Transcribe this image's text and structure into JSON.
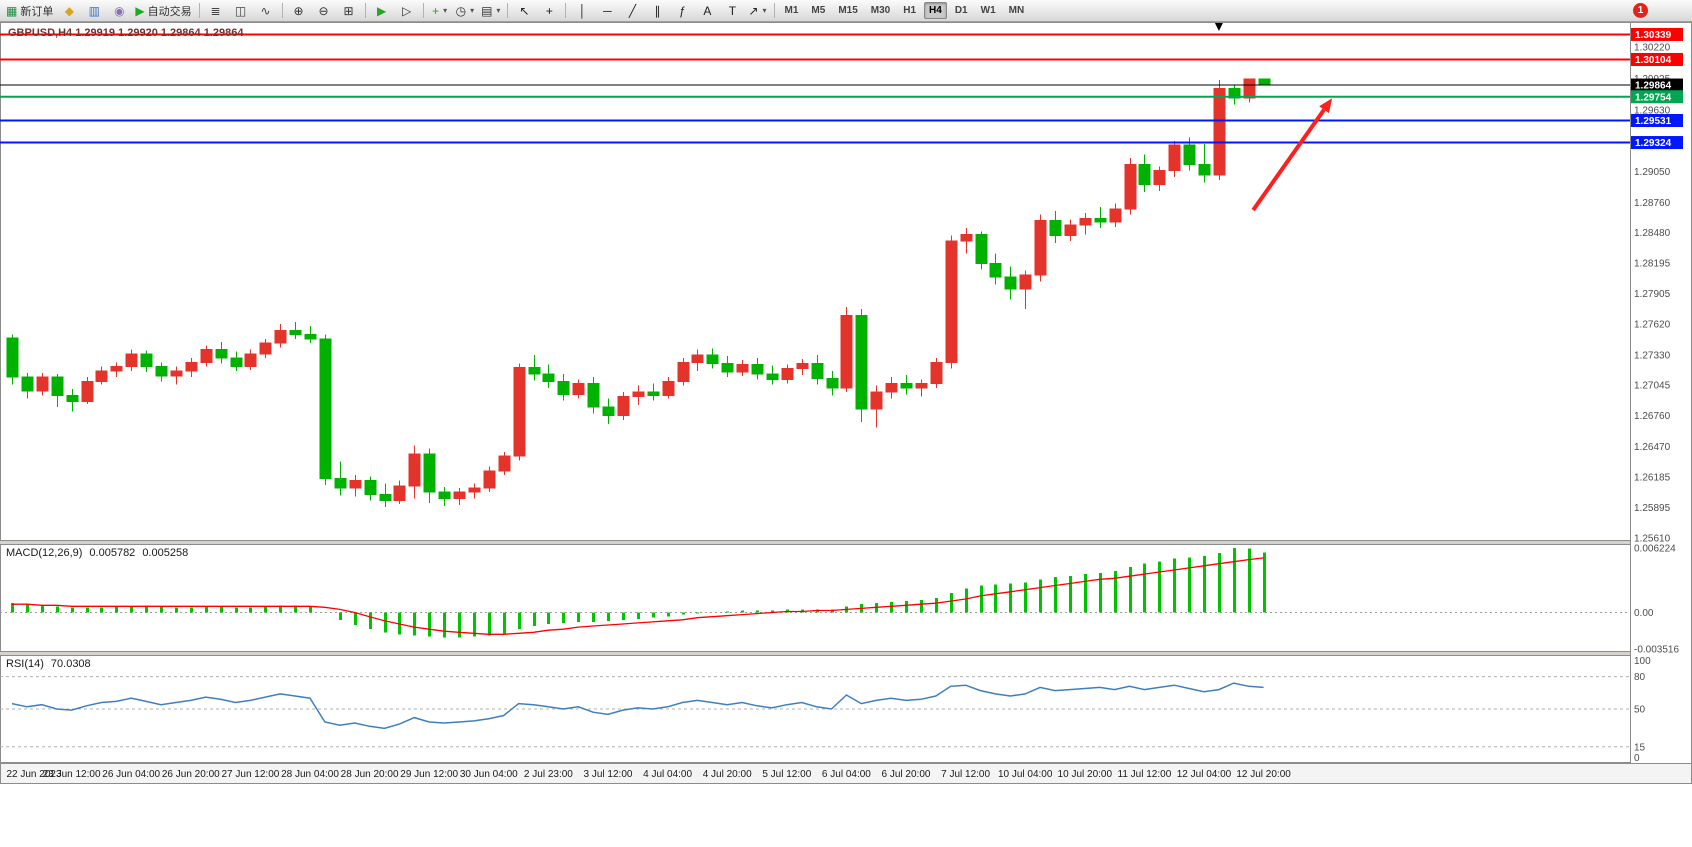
{
  "toolbar": {
    "new_order": "新订单",
    "auto_trading": "自动交易",
    "caret_glyph": "▾",
    "notification_count": "1",
    "timeframes": [
      "M1",
      "M5",
      "M15",
      "M30",
      "H1",
      "H4",
      "D1",
      "W1",
      "MN"
    ],
    "active_timeframe": "H4",
    "buttons": [
      {
        "name": "new-order-button",
        "glyph": "▦",
        "glyph_color": "#1c8c3c",
        "label_key": "new_order"
      },
      {
        "name": "history-center-button",
        "glyph": "◆",
        "glyph_color": "#d9a520"
      },
      {
        "name": "profiles-button",
        "glyph": "▥",
        "glyph_color": "#3a6fc4"
      },
      {
        "name": "alerts-button",
        "glyph": "◉",
        "glyph_color": "#8a6fb8"
      },
      {
        "name": "auto-trading-button",
        "glyph": "▶",
        "glyph_color": "#1faa1f",
        "label_key": "auto_trading"
      },
      {
        "sep": true
      },
      {
        "name": "bar-chart-button",
        "glyph": "≣",
        "glyph_color": "#444444"
      },
      {
        "name": "candlestick-chart-button",
        "glyph": "◫",
        "glyph_color": "#444444"
      },
      {
        "name": "line-chart-button",
        "glyph": "∿",
        "glyph_color": "#444444"
      },
      {
        "sep": true
      },
      {
        "name": "zoom-in-button",
        "glyph": "⊕",
        "glyph_color": "#333333"
      },
      {
        "name": "zoom-out-button",
        "glyph": "⊖",
        "glyph_color": "#333333"
      },
      {
        "name": "tile-windows-button",
        "glyph": "⊞",
        "glyph_color": "#333333"
      },
      {
        "sep": true
      },
      {
        "name": "auto-scroll-button",
        "glyph": "▶",
        "glyph_color": "#2aa52a"
      },
      {
        "name": "chart-shift-button",
        "glyph": "▷",
        "glyph_color": "#333333"
      },
      {
        "sep": true
      },
      {
        "name": "indicators-button",
        "glyph": "+",
        "glyph_color": "#1faa1f",
        "caret": true
      },
      {
        "name": "periods-button",
        "glyph": "◷",
        "glyph_color": "#333333",
        "caret": true
      },
      {
        "name": "templates-button",
        "glyph": "▤",
        "glyph_color": "#333333",
        "caret": true
      },
      {
        "sep": true
      },
      {
        "name": "cursor-button",
        "glyph": "↖",
        "glyph_color": "#222222"
      },
      {
        "name": "crosshair-button",
        "glyph": "+",
        "glyph_color": "#222222"
      },
      {
        "sep": true
      },
      {
        "name": "vertical-line-button",
        "glyph": "│",
        "glyph_color": "#222222"
      },
      {
        "name": "horizontal-line-button",
        "glyph": "─",
        "glyph_color": "#222222"
      },
      {
        "name": "trendline-button",
        "glyph": "╱",
        "glyph_color": "#222222"
      },
      {
        "name": "channel-button",
        "glyph": "∥",
        "glyph_color": "#222222"
      },
      {
        "name": "fibonacci-button",
        "glyph": "ƒ",
        "glyph_color": "#222222"
      },
      {
        "name": "text-button",
        "glyph": "A",
        "glyph_color": "#222222"
      },
      {
        "name": "text-label-button",
        "glyph": "T",
        "glyph_color": "#222222"
      },
      {
        "name": "arrows-button",
        "glyph": "↗",
        "glyph_color": "#222222",
        "caret": true
      },
      {
        "sep": true
      }
    ]
  },
  "main_chart": {
    "ohlc_readout": "GBPUSD,H4  1.29919 1.29920 1.29864 1.29864"
  },
  "macd": {
    "label": "MACD(12,26,9)",
    "value_main": "0.005782",
    "value_signal": "0.005258"
  },
  "rsi": {
    "label": "RSI(14)",
    "value": "70.0308"
  },
  "chart_data": [
    {
      "type": "candlestick",
      "symbol": "GBPUSD",
      "timeframe": "H4",
      "ohlc_readout": {
        "open": "1.29919",
        "high": "1.29920",
        "low": "1.29864",
        "close": "1.29864"
      },
      "up_color": "#e3332a",
      "down_color": "#00b200",
      "ylim": [
        1.25582,
        1.30456
      ],
      "price_axis_labels": [
        "1.30220",
        "1.29925",
        "1.29630",
        "1.29340",
        "1.29050",
        "1.28760",
        "1.28480",
        "1.28195",
        "1.27905",
        "1.27620",
        "1.27330",
        "1.27045",
        "1.26760",
        "1.26470",
        "1.26185",
        "1.25895",
        "1.25610"
      ],
      "levels": [
        {
          "price": 1.30339,
          "badge": "1.30339",
          "color": "#ff0000",
          "width": 2
        },
        {
          "price": 1.30104,
          "badge": "1.30104",
          "color": "#ff0000",
          "width": 2
        },
        {
          "price": 1.29864,
          "badge": "1.29864",
          "color": "#000000",
          "width": 1
        },
        {
          "price": 1.29754,
          "badge": "1.29754",
          "color": "#00a651",
          "width": 2
        },
        {
          "price": 1.29531,
          "badge": "1.29531",
          "color": "#0017ff",
          "width": 2
        },
        {
          "price": 1.29324,
          "badge": "1.29324",
          "color": "#0017ff",
          "width": 2
        }
      ],
      "x_label_every": 4,
      "x_labels": [
        "22 Jun 2023",
        "23 Jun 12:00",
        "26 Jun 04:00",
        "26 Jun 20:00",
        "27 Jun 12:00",
        "28 Jun 04:00",
        "28 Jun 20:00",
        "29 Jun 12:00",
        "30 Jun 04:00",
        "2 Jul 23:00",
        "3 Jul 12:00",
        "4 Jul 04:00",
        "4 Jul 20:00",
        "5 Jul 12:00",
        "6 Jul 04:00",
        "6 Jul 20:00",
        "7 Jul 12:00",
        "10 Jul 04:00",
        "10 Jul 20:00",
        "11 Jul 12:00",
        "12 Jul 04:00",
        "12 Jul 20:00"
      ],
      "arrow": {
        "from_bar": 83.3,
        "from_price": 1.2869,
        "to_bar": 88.6,
        "to_price": 1.2974,
        "color": "#ff1f1f"
      },
      "marker_bar": 81,
      "candles": [
        [
          1.2749,
          1.2752,
          1.2705,
          1.2712
        ],
        [
          1.2712,
          1.2716,
          1.2692,
          1.2699
        ],
        [
          1.2699,
          1.2716,
          1.2695,
          1.2712
        ],
        [
          1.2712,
          1.2715,
          1.2684,
          1.2695
        ],
        [
          1.2695,
          1.2701,
          1.268,
          1.2689
        ],
        [
          1.2689,
          1.2712,
          1.2687,
          1.2708
        ],
        [
          1.2708,
          1.2722,
          1.2705,
          1.2718
        ],
        [
          1.2718,
          1.2726,
          1.2712,
          1.2722
        ],
        [
          1.2722,
          1.2738,
          1.2718,
          1.2734
        ],
        [
          1.2734,
          1.2737,
          1.2717,
          1.2722
        ],
        [
          1.2722,
          1.2726,
          1.2708,
          1.2713
        ],
        [
          1.2713,
          1.2722,
          1.2705,
          1.2718
        ],
        [
          1.2718,
          1.273,
          1.2712,
          1.2726
        ],
        [
          1.2726,
          1.2742,
          1.2722,
          1.2738
        ],
        [
          1.2738,
          1.2745,
          1.2725,
          1.273
        ],
        [
          1.273,
          1.2736,
          1.2718,
          1.2722
        ],
        [
          1.2722,
          1.2738,
          1.2719,
          1.2734
        ],
        [
          1.2734,
          1.2748,
          1.273,
          1.2744
        ],
        [
          1.2744,
          1.2762,
          1.274,
          1.2756
        ],
        [
          1.2756,
          1.2764,
          1.2748,
          1.2752
        ],
        [
          1.2752,
          1.276,
          1.2744,
          1.2748
        ],
        [
          1.2748,
          1.2752,
          1.2611,
          1.2617
        ],
        [
          1.2617,
          1.2633,
          1.2601,
          1.2608
        ],
        [
          1.2608,
          1.262,
          1.26,
          1.2615
        ],
        [
          1.2615,
          1.2619,
          1.2596,
          1.2602
        ],
        [
          1.2602,
          1.2612,
          1.259,
          1.2596
        ],
        [
          1.2596,
          1.2615,
          1.2593,
          1.261
        ],
        [
          1.261,
          1.2648,
          1.2598,
          1.264
        ],
        [
          1.264,
          1.2645,
          1.2594,
          1.2604
        ],
        [
          1.2604,
          1.2609,
          1.2591,
          1.2598
        ],
        [
          1.2598,
          1.2608,
          1.2592,
          1.2604
        ],
        [
          1.2604,
          1.2612,
          1.2598,
          1.2608
        ],
        [
          1.2608,
          1.2628,
          1.2604,
          1.2624
        ],
        [
          1.2624,
          1.2642,
          1.262,
          1.2638
        ],
        [
          1.2638,
          1.2725,
          1.2634,
          1.2721
        ],
        [
          1.2721,
          1.2733,
          1.2709,
          1.2715
        ],
        [
          1.2715,
          1.2724,
          1.2702,
          1.2708
        ],
        [
          1.2708,
          1.2715,
          1.269,
          1.2696
        ],
        [
          1.2696,
          1.271,
          1.2692,
          1.2706
        ],
        [
          1.2706,
          1.2712,
          1.2678,
          1.2684
        ],
        [
          1.2684,
          1.2692,
          1.2668,
          1.2676
        ],
        [
          1.2676,
          1.2698,
          1.2672,
          1.2694
        ],
        [
          1.2694,
          1.2704,
          1.2686,
          1.2698
        ],
        [
          1.2698,
          1.2706,
          1.269,
          1.2695
        ],
        [
          1.2695,
          1.2712,
          1.2692,
          1.2708
        ],
        [
          1.2708,
          1.273,
          1.2704,
          1.2726
        ],
        [
          1.2726,
          1.2738,
          1.2718,
          1.2733
        ],
        [
          1.2733,
          1.2739,
          1.272,
          1.2725
        ],
        [
          1.2725,
          1.2732,
          1.2712,
          1.2717
        ],
        [
          1.2717,
          1.2728,
          1.2713,
          1.2724
        ],
        [
          1.2724,
          1.273,
          1.271,
          1.2715
        ],
        [
          1.2715,
          1.2723,
          1.2705,
          1.271
        ],
        [
          1.271,
          1.2724,
          1.2706,
          1.272
        ],
        [
          1.272,
          1.2729,
          1.2714,
          1.2725
        ],
        [
          1.2725,
          1.2733,
          1.2705,
          1.2711
        ],
        [
          1.2711,
          1.2718,
          1.2695,
          1.2702
        ],
        [
          1.2702,
          1.2778,
          1.2698,
          1.277
        ],
        [
          1.277,
          1.2776,
          1.267,
          1.2682
        ],
        [
          1.2682,
          1.2704,
          1.2665,
          1.2698
        ],
        [
          1.2698,
          1.2712,
          1.2692,
          1.2706
        ],
        [
          1.2706,
          1.2714,
          1.2696,
          1.2702
        ],
        [
          1.2702,
          1.271,
          1.2694,
          1.2706
        ],
        [
          1.2706,
          1.273,
          1.2702,
          1.2726
        ],
        [
          1.2726,
          1.2845,
          1.272,
          1.284
        ],
        [
          1.284,
          1.2852,
          1.2828,
          1.2846
        ],
        [
          1.2846,
          1.2849,
          1.2813,
          1.2819
        ],
        [
          1.2819,
          1.2828,
          1.2799,
          1.2806
        ],
        [
          1.2806,
          1.2816,
          1.2785,
          1.2795
        ],
        [
          1.2795,
          1.2812,
          1.2776,
          1.2808
        ],
        [
          1.2808,
          1.2865,
          1.2802,
          1.2859
        ],
        [
          1.2859,
          1.2868,
          1.2838,
          1.2845
        ],
        [
          1.2845,
          1.286,
          1.284,
          1.2855
        ],
        [
          1.2855,
          1.2866,
          1.2846,
          1.2861
        ],
        [
          1.2861,
          1.2872,
          1.2852,
          1.2858
        ],
        [
          1.2858,
          1.2875,
          1.2853,
          1.287
        ],
        [
          1.287,
          1.2918,
          1.2865,
          1.2912
        ],
        [
          1.2912,
          1.2921,
          1.2886,
          1.2893
        ],
        [
          1.2893,
          1.291,
          1.2887,
          1.2906
        ],
        [
          1.2906,
          1.2934,
          1.29,
          1.293
        ],
        [
          1.293,
          1.2937,
          1.2906,
          1.2912
        ],
        [
          1.2912,
          1.2931,
          1.2895,
          1.2902
        ],
        [
          1.2902,
          1.2991,
          1.2897,
          1.2983
        ],
        [
          1.2983,
          1.2987,
          1.2968,
          1.2974
        ],
        [
          1.2974,
          1.29925,
          1.297,
          1.29919
        ],
        [
          1.29919,
          1.2992,
          1.29864,
          1.29864
        ]
      ]
    },
    {
      "type": "macd",
      "label": "MACD(12,26,9)",
      "value_main": 0.005782,
      "value_signal": 0.005258,
      "ylim": [
        -0.0038,
        0.0066
      ],
      "colors": {
        "histogram": "#00c400",
        "signal": "#ff0000"
      },
      "axis_labels": [
        [
          "0.006224",
          0.006224
        ],
        [
          "0.00",
          0
        ],
        [
          "-0.003516",
          -0.003516
        ]
      ],
      "histogram": [
        0.0009,
        0.0008,
        0.0007,
        0.0006,
        0.0005,
        0.0005,
        0.0005,
        0.0006,
        0.0006,
        0.0007,
        0.0006,
        0.0005,
        0.0005,
        0.0006,
        0.0006,
        0.0005,
        0.0005,
        0.0006,
        0.0007,
        0.0007,
        0.0006,
        0.0,
        -0.0007,
        -0.0012,
        -0.0016,
        -0.0019,
        -0.0021,
        -0.0022,
        -0.0023,
        -0.0024,
        -0.0024,
        -0.0023,
        -0.0022,
        -0.002,
        -0.0016,
        -0.0013,
        -0.0011,
        -0.001,
        -0.0009,
        -0.0009,
        -0.0008,
        -0.0007,
        -0.0006,
        -0.0005,
        -0.0004,
        -0.0002,
        -0.0001,
        0.0,
        0.0001,
        0.0002,
        0.0002,
        0.0002,
        0.0003,
        0.0003,
        0.0003,
        0.0003,
        0.0006,
        0.0008,
        0.0009,
        0.001,
        0.0011,
        0.0012,
        0.0014,
        0.0019,
        0.0023,
        0.0026,
        0.0027,
        0.0028,
        0.0029,
        0.0032,
        0.0034,
        0.0035,
        0.0037,
        0.0038,
        0.004,
        0.0044,
        0.0047,
        0.0049,
        0.0052,
        0.0053,
        0.00545,
        0.00575,
        0.006224,
        0.00615,
        0.005782
      ],
      "signal": [
        0.0008,
        0.0008,
        0.0007,
        0.0007,
        0.0006,
        0.0006,
        0.0006,
        0.0006,
        0.0006,
        0.0006,
        0.0006,
        0.0006,
        0.0006,
        0.0006,
        0.0006,
        0.0006,
        0.0006,
        0.0006,
        0.0006,
        0.0006,
        0.0006,
        0.0005,
        0.0003,
        0.0,
        -0.0004,
        -0.0008,
        -0.0011,
        -0.0014,
        -0.0016,
        -0.0018,
        -0.0019,
        -0.002,
        -0.0021,
        -0.0021,
        -0.002,
        -0.0019,
        -0.0017,
        -0.0016,
        -0.0014,
        -0.0013,
        -0.0012,
        -0.0011,
        -0.001,
        -0.0009,
        -0.0008,
        -0.0007,
        -0.0005,
        -0.0004,
        -0.0003,
        -0.0002,
        -0.0001,
        0.0,
        0.0001,
        0.0001,
        0.0002,
        0.0002,
        0.0003,
        0.0004,
        0.0005,
        0.0006,
        0.0007,
        0.0008,
        0.0009,
        0.0011,
        0.0013,
        0.0016,
        0.0018,
        0.002,
        0.0022,
        0.0024,
        0.0026,
        0.0028,
        0.003,
        0.0032,
        0.0033,
        0.0035,
        0.0037,
        0.0039,
        0.0041,
        0.0043,
        0.0045,
        0.0047,
        0.0049,
        0.0051,
        0.005258
      ]
    },
    {
      "type": "line",
      "label": "RSI(14)",
      "value": 70.0308,
      "color": "#3e7fc1",
      "ylim": [
        0,
        100
      ],
      "levels": [
        80,
        50,
        15
      ],
      "axis_labels": [
        [
          "100",
          100
        ],
        [
          "80",
          80
        ],
        [
          "50",
          50
        ],
        [
          "15",
          15
        ],
        [
          "0",
          0
        ]
      ],
      "values": [
        55,
        52,
        54,
        50,
        49,
        53,
        56,
        57,
        60,
        57,
        54,
        56,
        58,
        61,
        59,
        56,
        58,
        61,
        64,
        62,
        60,
        38,
        35,
        37,
        34,
        32,
        36,
        42,
        38,
        37,
        38,
        39,
        41,
        44,
        55,
        54,
        52,
        50,
        52,
        47,
        45,
        49,
        51,
        50,
        52,
        56,
        58,
        56,
        54,
        56,
        53,
        51,
        54,
        56,
        52,
        50,
        63,
        55,
        58,
        60,
        58,
        59,
        62,
        71,
        72,
        67,
        64,
        62,
        64,
        70,
        67,
        68,
        69,
        70,
        68,
        71,
        68,
        70,
        72,
        69,
        66,
        68,
        74,
        71,
        70.03
      ]
    }
  ]
}
